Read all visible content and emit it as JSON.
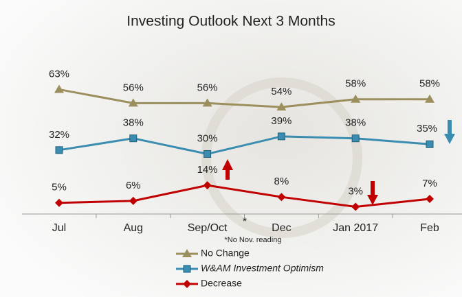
{
  "chart_data": {
    "type": "line",
    "title": "Investing Outlook Next 3 Months",
    "categories": [
      "Jul",
      "Aug",
      "Sep/Oct",
      "Dec",
      "Jan 2017",
      "Feb"
    ],
    "series": [
      {
        "name": "No Change",
        "color": "#9c8f5e",
        "marker": "triangle",
        "values": [
          63,
          56,
          56,
          54,
          58,
          58
        ],
        "value_labels": [
          "63%",
          "56%",
          "56%",
          "54%",
          "58%",
          "58%"
        ]
      },
      {
        "name": "W&AM Investment Optimism",
        "color": "#3a8db0",
        "marker": "square",
        "values": [
          32,
          38,
          30,
          39,
          38,
          35
        ],
        "value_labels": [
          "32%",
          "38%",
          "30%",
          "39%",
          "38%",
          "35%"
        ]
      },
      {
        "name": "Decrease",
        "color": "#c00000",
        "marker": "diamond",
        "values": [
          5,
          6,
          14,
          8,
          3,
          7
        ],
        "value_labels": [
          "5%",
          "6%",
          "14%",
          "8%",
          "3%",
          "7%"
        ]
      }
    ],
    "annotations": [
      "*",
      "*No Nov. reading"
    ]
  }
}
